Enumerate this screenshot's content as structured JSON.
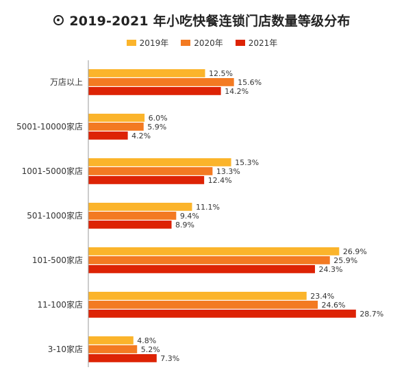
{
  "chart_data": {
    "type": "bar",
    "orientation": "horizontal",
    "title": "2019-2021 年小吃快餐连锁门店数量等级分布",
    "title_icon": "target-icon",
    "legend_position": "top-center",
    "grid": false,
    "xlim": [
      0,
      30
    ],
    "categories": [
      "万店以上",
      "5001-10000家店",
      "1001-5000家店",
      "501-1000家店",
      "101-500家店",
      "11-100家店",
      "3-10家店"
    ],
    "series": [
      {
        "name": "2019年",
        "color": "#FBB42B",
        "values": [
          12.5,
          6.0,
          15.3,
          11.1,
          26.9,
          23.4,
          4.8
        ],
        "labels": [
          "12.5%",
          "6.0%",
          "15.3%",
          "11.1%",
          "26.9%",
          "23.4%",
          "4.8%"
        ]
      },
      {
        "name": "2020年",
        "color": "#F37A22",
        "values": [
          15.6,
          5.9,
          13.3,
          9.4,
          25.9,
          24.6,
          5.2
        ],
        "labels": [
          "15.6%",
          "5.9%",
          "13.3%",
          "9.4%",
          "25.9%",
          "24.6%",
          "5.2%"
        ]
      },
      {
        "name": "2021年",
        "color": "#DD2305",
        "values": [
          14.2,
          4.2,
          12.4,
          8.9,
          24.3,
          28.7,
          7.3
        ],
        "labels": [
          "14.2%",
          "4.2%",
          "12.4%",
          "8.9%",
          "24.3%",
          "28.7%",
          "7.3%"
        ]
      }
    ]
  }
}
